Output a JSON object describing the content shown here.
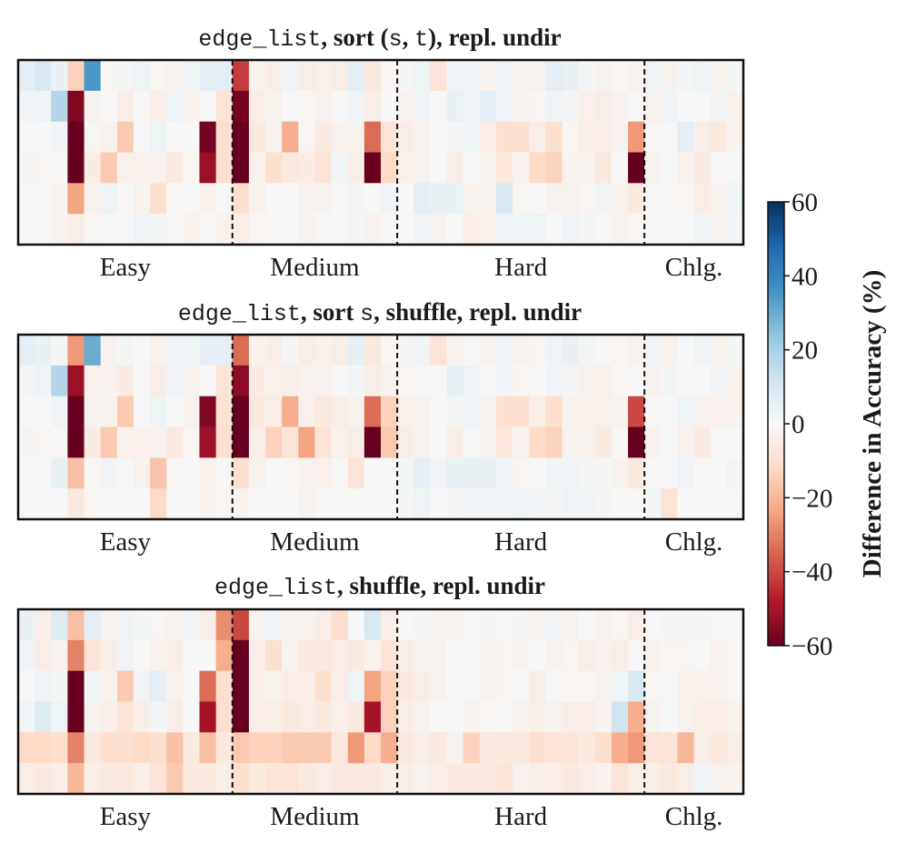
{
  "chart_data": {
    "type": "heatmap",
    "colormap": "RdBu",
    "value_range": [
      -60,
      60
    ],
    "categories": [
      "Easy",
      "Medium",
      "Hard",
      "Chlg."
    ],
    "category_col_bounds": [
      0,
      13,
      23,
      38,
      44
    ],
    "n_cols": 44,
    "n_rows": 6,
    "colorbar": {
      "label": "Difference in Accuracy (%)",
      "ticks": [
        60,
        40,
        20,
        0,
        -20,
        -40,
        -60
      ],
      "tick_labels": [
        "60",
        "40",
        "20",
        "0",
        "−20",
        "−40",
        "−60"
      ]
    },
    "panels": [
      {
        "title": [
          {
            "text": "edge_list",
            "style": "mono"
          },
          {
            "text": ", sort (",
            "style": "serif"
          },
          {
            "text": "s",
            "style": "mono"
          },
          {
            "text": ", ",
            "style": "serif"
          },
          {
            "text": "t",
            "style": "mono"
          },
          {
            "text": "), repl. undir",
            "style": "serif"
          }
        ],
        "values": [
          [
            6,
            10,
            4,
            -14,
            35,
            -1,
            1,
            3,
            -1,
            -2,
            3,
            6,
            6,
            -42,
            -2,
            -4,
            2,
            -4,
            -3,
            -4,
            6,
            -6,
            -1,
            1,
            3,
            -8,
            2,
            2,
            -2,
            3,
            -2,
            -2,
            6,
            4,
            1,
            -2,
            -1,
            -2,
            3,
            -2,
            1,
            3,
            -2,
            1
          ],
          [
            2,
            3,
            18,
            -56,
            -2,
            0,
            -4,
            0,
            -4,
            3,
            -2,
            0,
            -8,
            -58,
            -4,
            -2,
            0,
            -1,
            -2,
            0,
            2,
            -4,
            0,
            -2,
            2,
            0,
            4,
            2,
            6,
            3,
            -2,
            -1,
            2,
            1,
            -3,
            -4,
            -2,
            0,
            -2,
            2,
            0,
            0,
            2,
            -3
          ],
          [
            0,
            0,
            2,
            -60,
            -1,
            -2,
            -16,
            0,
            3,
            0,
            0,
            -58,
            -10,
            -60,
            -6,
            -2,
            -22,
            -1,
            -5,
            -2,
            -2,
            -34,
            -8,
            -4,
            -2,
            0,
            1,
            3,
            -4,
            -10,
            -10,
            -4,
            -10,
            -1,
            -4,
            -4,
            -2,
            -26,
            -1,
            0,
            6,
            -4,
            -6,
            -2
          ],
          [
            1,
            -1,
            0,
            -60,
            -5,
            -16,
            -3,
            -3,
            -2,
            -6,
            -1,
            -52,
            -10,
            -60,
            -3,
            -10,
            -6,
            -5,
            -8,
            2,
            -4,
            -60,
            -12,
            -3,
            -2,
            0,
            -4,
            0,
            -2,
            -7,
            -2,
            -12,
            -14,
            -2,
            -2,
            -6,
            0,
            -60,
            -2,
            0,
            -2,
            -5,
            0,
            0
          ],
          [
            0,
            0,
            -2,
            -24,
            -2,
            3,
            0,
            -2,
            -10,
            -1,
            0,
            -2,
            0,
            -10,
            -2,
            0,
            0,
            -2,
            -2,
            0,
            1,
            0,
            2,
            0,
            6,
            4,
            4,
            -2,
            -2,
            10,
            -1,
            0,
            -2,
            -2,
            -1,
            2,
            -2,
            -6,
            0,
            0,
            -1,
            -4,
            -2,
            3
          ],
          [
            0,
            0,
            -2,
            -4,
            -1,
            0,
            0,
            2,
            1,
            0,
            -2,
            0,
            -2,
            -4,
            -1,
            0,
            0,
            -2,
            0,
            0,
            1,
            -2,
            0,
            0,
            2,
            -2,
            0,
            -4,
            -3,
            3,
            3,
            3,
            0,
            2,
            1,
            0,
            -2,
            -1,
            0,
            0,
            0,
            2,
            -2,
            2
          ]
        ]
      },
      {
        "title": [
          {
            "text": "edge_list",
            "style": "mono"
          },
          {
            "text": ", sort ",
            "style": "serif"
          },
          {
            "text": "s",
            "style": "mono"
          },
          {
            "text": ", shuffle, repl. undir",
            "style": "serif"
          }
        ],
        "values": [
          [
            6,
            4,
            1,
            -26,
            30,
            -2,
            1,
            0,
            -2,
            2,
            3,
            6,
            6,
            -34,
            -2,
            -4,
            1,
            -4,
            -3,
            -4,
            5,
            -6,
            -1,
            1,
            2,
            -8,
            -2,
            0,
            -2,
            3,
            -2,
            -1,
            2,
            4,
            1,
            0,
            -1,
            -2,
            2,
            -2,
            0,
            2,
            -2,
            1
          ],
          [
            1,
            3,
            18,
            -52,
            -3,
            -2,
            -5,
            0,
            -4,
            2,
            -2,
            0,
            -8,
            -54,
            -5,
            -3,
            -4,
            -2,
            -2,
            0,
            1,
            -4,
            -2,
            -1,
            0,
            0,
            5,
            3,
            0,
            2,
            -1,
            0,
            2,
            1,
            -2,
            -3,
            -1,
            0,
            -2,
            1,
            0,
            0,
            2,
            -2
          ],
          [
            0,
            0,
            2,
            -60,
            -2,
            -2,
            -16,
            0,
            3,
            0,
            -2,
            -56,
            -9,
            -60,
            -6,
            -4,
            -22,
            -3,
            -6,
            -4,
            -2,
            -34,
            -14,
            -3,
            -2,
            0,
            1,
            3,
            -2,
            -10,
            -10,
            -4,
            -10,
            -2,
            -3,
            -3,
            -2,
            -40,
            -1,
            0,
            3,
            -2,
            -3,
            -2
          ],
          [
            1,
            -1,
            0,
            -60,
            -5,
            -16,
            -3,
            -3,
            -2,
            -6,
            -1,
            -52,
            -10,
            -60,
            -4,
            -14,
            -8,
            -24,
            -8,
            -3,
            -4,
            -60,
            -16,
            -4,
            -2,
            0,
            -4,
            0,
            -2,
            -7,
            -2,
            -12,
            -14,
            -2,
            -2,
            -5,
            0,
            -60,
            -2,
            0,
            -2,
            -5,
            0,
            0
          ],
          [
            0,
            0,
            4,
            -18,
            -1,
            2,
            0,
            -2,
            -17,
            -1,
            0,
            -2,
            0,
            -10,
            -2,
            0,
            -1,
            -2,
            -3,
            0,
            -8,
            0,
            0,
            1,
            6,
            2,
            4,
            4,
            4,
            3,
            -1,
            0,
            2,
            2,
            1,
            1,
            -2,
            -6,
            0,
            0,
            2,
            0,
            0,
            2
          ],
          [
            0,
            0,
            0,
            -6,
            -1,
            0,
            0,
            0,
            -12,
            0,
            0,
            -2,
            -1,
            -2,
            0,
            0,
            0,
            -2,
            0,
            0,
            0,
            0,
            0,
            1,
            3,
            0,
            1,
            2,
            2,
            2,
            3,
            2,
            1,
            2,
            2,
            1,
            0,
            0,
            1,
            -8,
            0,
            0,
            0,
            0
          ]
        ]
      },
      {
        "title": [
          {
            "text": "edge_list",
            "style": "mono"
          },
          {
            "text": ", shuffle, repl. undir",
            "style": "serif"
          }
        ],
        "values": [
          [
            4,
            -4,
            8,
            -18,
            6,
            -2,
            2,
            1,
            -1,
            -2,
            2,
            -4,
            -28,
            -40,
            -2,
            2,
            -2,
            -2,
            -4,
            -10,
            0,
            10,
            -4,
            0,
            1,
            -2,
            -2,
            0,
            1,
            0,
            1,
            -2,
            2,
            -2,
            0,
            -2,
            -1,
            -4,
            0,
            1,
            1,
            1,
            0,
            0
          ],
          [
            2,
            -4,
            -2,
            -30,
            -8,
            -4,
            2,
            0,
            -2,
            -4,
            0,
            0,
            -22,
            -60,
            -4,
            -10,
            -2,
            -6,
            -6,
            -4,
            -6,
            -3,
            -8,
            -4,
            -2,
            -2,
            0,
            0,
            -2,
            -1,
            -2,
            0,
            -2,
            -1,
            -4,
            -2,
            -4,
            0,
            -2,
            -1,
            -1,
            0,
            -2,
            -1
          ],
          [
            0,
            2,
            1,
            -60,
            2,
            -2,
            -16,
            2,
            6,
            -2,
            0,
            -34,
            -10,
            -60,
            -4,
            -2,
            -4,
            -4,
            -10,
            -4,
            3,
            -24,
            -14,
            -6,
            -4,
            -2,
            0,
            0,
            -2,
            -1,
            0,
            -4,
            0,
            -1,
            -1,
            -2,
            3,
            10,
            -1,
            0,
            -3,
            -3,
            -2,
            -1
          ],
          [
            2,
            8,
            3,
            -60,
            -2,
            -4,
            -8,
            -4,
            2,
            -4,
            0,
            -50,
            -10,
            -60,
            -4,
            -4,
            -6,
            -4,
            -6,
            -3,
            -6,
            -50,
            -14,
            -4,
            -2,
            0,
            0,
            -2,
            -1,
            0,
            -2,
            -4,
            -2,
            -4,
            -4,
            -2,
            12,
            -22,
            -2,
            0,
            -2,
            -4,
            -4,
            -2
          ],
          [
            -12,
            -12,
            -10,
            -30,
            -6,
            -10,
            -10,
            -12,
            -10,
            -18,
            -6,
            -18,
            -6,
            -16,
            -14,
            -14,
            -16,
            -16,
            -16,
            -6,
            -26,
            -12,
            -22,
            -6,
            -4,
            -6,
            -2,
            -14,
            -6,
            -6,
            -6,
            -10,
            -8,
            -8,
            -6,
            -10,
            -22,
            -26,
            -8,
            -8,
            -20,
            -4,
            -6,
            -4
          ],
          [
            -4,
            -6,
            -4,
            -20,
            -4,
            -6,
            -6,
            -4,
            -8,
            -16,
            -6,
            -6,
            -4,
            -10,
            -6,
            -8,
            -8,
            -6,
            -4,
            -6,
            -6,
            -6,
            -4,
            -4,
            -2,
            -4,
            -6,
            -6,
            -6,
            -8,
            -2,
            -4,
            -4,
            -6,
            -4,
            -2,
            -8,
            -4,
            -4,
            -6,
            -4,
            2,
            -2,
            -2
          ]
        ]
      }
    ]
  }
}
